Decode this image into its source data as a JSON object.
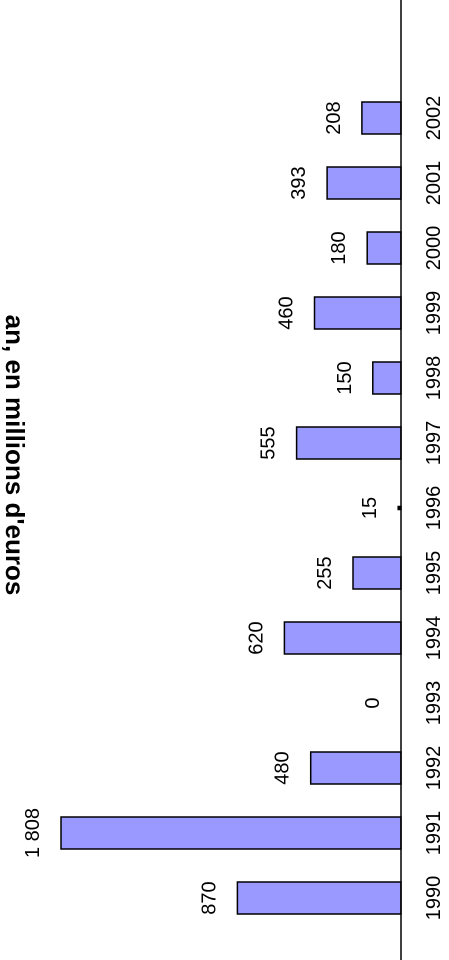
{
  "chart_data": {
    "type": "bar",
    "orientation": "rotated-90",
    "title": "an, en millions d'euros",
    "categories": [
      "1990",
      "1991",
      "1992",
      "1993",
      "1994",
      "1995",
      "1996",
      "1997",
      "1998",
      "1999",
      "2000",
      "2001",
      "2002"
    ],
    "values": [
      870,
      1808,
      480,
      0,
      620,
      255,
      15,
      555,
      150,
      460,
      180,
      393,
      208
    ],
    "value_labels": [
      "870",
      "1 808",
      "480",
      "0",
      "620",
      "255",
      "15",
      "555",
      "150",
      "460",
      "180",
      "393",
      "208"
    ],
    "bar_color": "#9999ff",
    "bar_edge_color": "#000000",
    "ylim": [
      0,
      1900
    ],
    "grid": false,
    "legend": "none"
  }
}
